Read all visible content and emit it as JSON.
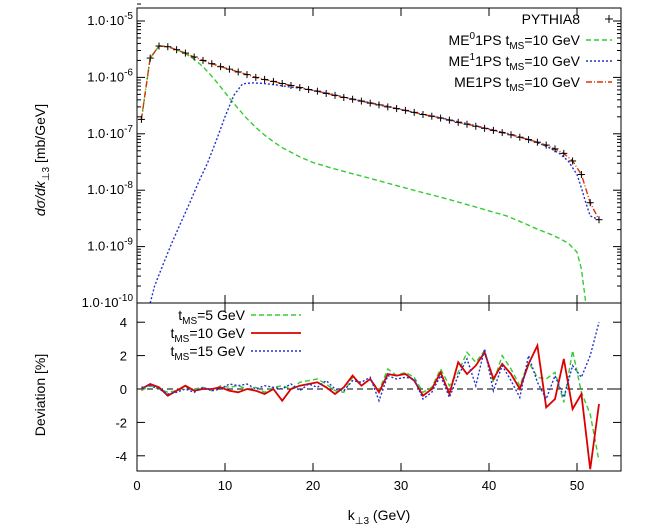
{
  "chart_data": [
    {
      "type": "line",
      "panel": "top",
      "title": "",
      "xlabel": "",
      "ylabel_main": "dσ/dk",
      "ylabel_sub": "⊥3",
      "ylabel_unit": "[mb/GeV]",
      "yscale": "log",
      "xlim": [
        0,
        55
      ],
      "ylim": [
        1e-10,
        2e-05
      ],
      "grid": false,
      "legend_position": "top-right",
      "y_ticks": [
        {
          "value": 1e-05,
          "mant": "1.0·10",
          "exp": "-5"
        },
        {
          "value": 1e-06,
          "mant": "1.0·10",
          "exp": "-6"
        },
        {
          "value": 1e-07,
          "mant": "1.0·10",
          "exp": "-7"
        },
        {
          "value": 1e-08,
          "mant": "1.0·10",
          "exp": "-8"
        },
        {
          "value": 1e-09,
          "mant": "1.0·10",
          "exp": "-9"
        },
        {
          "value": 1e-10,
          "mant": "1.0·10",
          "exp": "-10"
        }
      ],
      "legend": [
        {
          "parts": [
            {
              "t": "PYTHIA8"
            }
          ]
        },
        {
          "parts": [
            {
              "t": "ME"
            },
            {
              "t": "0",
              "sup": true
            },
            {
              "t": "1PS t"
            },
            {
              "t": "MS",
              "sub": true
            },
            {
              "t": "=10 GeV"
            }
          ]
        },
        {
          "parts": [
            {
              "t": "ME"
            },
            {
              "t": "1",
              "sup": true
            },
            {
              "t": "1PS t"
            },
            {
              "t": "MS",
              "sub": true
            },
            {
              "t": "=10 GeV"
            }
          ]
        },
        {
          "parts": [
            {
              "t": "ME1PS t"
            },
            {
              "t": "MS",
              "sub": true
            },
            {
              "t": "=10 GeV"
            }
          ]
        }
      ],
      "series": [
        {
          "key": "pythia",
          "style": "crosses",
          "color": "#000000",
          "x": [
            0.5,
            1.5,
            2.5,
            3.5,
            4.5,
            5.5,
            6.5,
            7.5,
            8.5,
            9.5,
            10.5,
            11.5,
            12.5,
            13.5,
            14.5,
            15.5,
            16.5,
            17.5,
            18.5,
            19.5,
            20.5,
            21.5,
            22.5,
            23.5,
            24.5,
            25.5,
            26.5,
            27.5,
            28.5,
            29.5,
            30.5,
            31.5,
            32.5,
            33.5,
            34.5,
            35.5,
            36.5,
            37.5,
            38.5,
            39.5,
            40.5,
            41.5,
            42.5,
            43.5,
            44.5,
            45.5,
            46.5,
            47.5,
            48.5,
            49.5,
            50.5,
            51.5,
            52.5
          ],
          "y": [
            1.8e-07,
            2.2e-06,
            3.6e-06,
            3.5e-06,
            3.1e-06,
            2.7e-06,
            2.3e-06,
            2e-06,
            1.75e-06,
            1.55e-06,
            1.4e-06,
            1.25e-06,
            1.12e-06,
            1e-06,
            9.2e-07,
            8.5e-07,
            7.8e-07,
            7.2e-07,
            6.6e-07,
            6.1e-07,
            5.7e-07,
            5.2e-07,
            4.8e-07,
            4.4e-07,
            4.1e-07,
            3.8e-07,
            3.5e-07,
            3.25e-07,
            3e-07,
            2.8e-07,
            2.6e-07,
            2.4e-07,
            2.2e-07,
            2.05e-07,
            1.9e-07,
            1.75e-07,
            1.6e-07,
            1.48e-07,
            1.36e-07,
            1.25e-07,
            1.15e-07,
            1.05e-07,
            9.6e-08,
            8.7e-08,
            7.9e-08,
            7.1e-08,
            6.3e-08,
            5.4e-08,
            4.5e-08,
            3.3e-08,
            1.9e-08,
            6e-09,
            3e-09
          ]
        },
        {
          "key": "me0",
          "style": "dashed",
          "color": "#33cc33",
          "x": [
            0.5,
            1.5,
            2.5,
            3.5,
            4.5,
            5.5,
            6.5,
            7.5,
            8.5,
            9.5,
            10.5,
            11.5,
            12.5,
            13.5,
            14.5,
            15.5,
            16.5,
            17.5,
            18.5,
            19.5,
            20,
            22,
            24,
            26,
            28,
            30,
            32,
            34,
            36,
            38,
            40,
            42,
            44,
            45,
            46,
            47,
            48,
            49,
            50,
            50.5,
            51
          ],
          "y": [
            1.8e-07,
            2.2e-06,
            3.6e-06,
            3.5e-06,
            3.1e-06,
            2.65e-06,
            2.1e-06,
            1.55e-06,
            1.05e-06,
            6.8e-07,
            4.3e-07,
            2.8e-07,
            1.85e-07,
            1.3e-07,
            9.5e-08,
            7.2e-08,
            5.7e-08,
            4.7e-08,
            3.9e-08,
            3.35e-08,
            3.1e-08,
            2.5e-08,
            2.05e-08,
            1.7e-08,
            1.4e-08,
            1.15e-08,
            9.5e-09,
            7.9e-09,
            6.5e-09,
            5.3e-09,
            4.3e-09,
            3.5e-09,
            2.6e-09,
            2.2e-09,
            1.9e-09,
            1.65e-09,
            1.4e-09,
            1.15e-09,
            8e-10,
            4e-10,
            1e-10
          ]
        },
        {
          "key": "me1",
          "style": "dotted",
          "color": "#2233cc",
          "x": [
            1.5,
            2,
            3,
            4,
            5,
            6,
            7,
            8,
            9,
            10,
            11,
            12,
            13,
            14,
            15,
            16,
            17,
            18,
            19,
            20,
            22,
            24,
            26,
            28,
            30,
            32,
            34,
            36,
            38,
            40,
            42,
            44,
            46,
            47,
            48,
            49,
            50,
            50.5,
            51,
            51.5,
            52.5
          ],
          "y": [
            1e-10,
            2e-10,
            5e-10,
            1.2e-09,
            2.7e-09,
            6e-09,
            1.4e-08,
            3e-08,
            7.5e-08,
            2e-07,
            4.8e-07,
            7.7e-07,
            8e-07,
            7.9e-07,
            7.6e-07,
            7.3e-07,
            6.9e-07,
            6.6e-07,
            6.3e-07,
            5.9e-07,
            5.1e-07,
            4.3e-07,
            3.7e-07,
            3.2e-07,
            2.7e-07,
            2.3e-07,
            2e-07,
            1.7e-07,
            1.45e-07,
            1.22e-07,
            1.02e-07,
            8.4e-08,
            6.5e-08,
            5.5e-08,
            4.5e-08,
            3.3e-08,
            1.9e-08,
            1.1e-08,
            6e-09,
            3.5e-09,
            3e-09
          ]
        },
        {
          "key": "me1ps",
          "style": "dashdot",
          "color": "#dd3300",
          "x": [
            0.5,
            1.5,
            2.5,
            3.5,
            4.5,
            5.5,
            6.5,
            7.5,
            8.5,
            9.5,
            10.5,
            11.5,
            12.5,
            13.5,
            14.5,
            15.5,
            16.5,
            17.5,
            18.5,
            19.5,
            20.5,
            21.5,
            22.5,
            23.5,
            24.5,
            25.5,
            26.5,
            27.5,
            28.5,
            29.5,
            30.5,
            31.5,
            32.5,
            33.5,
            34.5,
            35.5,
            36.5,
            37.5,
            38.5,
            39.5,
            40.5,
            41.5,
            42.5,
            43.5,
            44.5,
            45.5,
            46.5,
            47.5,
            48.5,
            49.5,
            50.5,
            51.5,
            52.5
          ],
          "y": [
            1.8e-07,
            2.2e-06,
            3.6e-06,
            3.5e-06,
            3.1e-06,
            2.7e-06,
            2.3e-06,
            2e-06,
            1.75e-06,
            1.55e-06,
            1.4e-06,
            1.25e-06,
            1.12e-06,
            1e-06,
            9.2e-07,
            8.5e-07,
            7.8e-07,
            7.2e-07,
            6.6e-07,
            6.1e-07,
            5.7e-07,
            5.2e-07,
            4.8e-07,
            4.4e-07,
            4.1e-07,
            3.8e-07,
            3.5e-07,
            3.25e-07,
            3e-07,
            2.8e-07,
            2.6e-07,
            2.4e-07,
            2.2e-07,
            2.05e-07,
            1.9e-07,
            1.75e-07,
            1.6e-07,
            1.48e-07,
            1.36e-07,
            1.25e-07,
            1.15e-07,
            1.05e-07,
            9.6e-08,
            8.7e-08,
            7.9e-08,
            7.1e-08,
            6.3e-08,
            5.4e-08,
            4.5e-08,
            3.3e-08,
            1.9e-08,
            6e-09,
            3e-09
          ]
        }
      ]
    },
    {
      "type": "line",
      "panel": "bottom",
      "title": "",
      "xlabel_main": "k",
      "xlabel_sub": "⊥3",
      "xlabel_unit": "(GeV)",
      "ylabel": "Deviation [%]",
      "xlim": [
        0,
        55
      ],
      "ylim": [
        -5,
        5
      ],
      "grid": false,
      "legend_position": "top-left",
      "x_ticks": [
        "0",
        "10",
        "20",
        "30",
        "40",
        "50"
      ],
      "x_tick_values": [
        0,
        10,
        20,
        30,
        40,
        50
      ],
      "y_ticks": [
        "4",
        "2",
        "0",
        "-2",
        "-4"
      ],
      "y_tick_values": [
        4,
        2,
        0,
        -2,
        -4
      ],
      "zero_line": true,
      "legend": [
        {
          "parts": [
            {
              "t": "t"
            },
            {
              "t": "MS",
              "sub": true
            },
            {
              "t": "=5 GeV"
            }
          ]
        },
        {
          "parts": [
            {
              "t": "t"
            },
            {
              "t": "MS",
              "sub": true
            },
            {
              "t": "=10 GeV"
            }
          ]
        },
        {
          "parts": [
            {
              "t": "t"
            },
            {
              "t": "MS",
              "sub": true
            },
            {
              "t": "=15 GeV"
            }
          ]
        }
      ],
      "series": [
        {
          "key": "t5",
          "style": "dashed",
          "color": "#33cc33",
          "x": [
            0.5,
            1.5,
            2.5,
            3.5,
            4.5,
            5.5,
            6.5,
            7.5,
            8.5,
            9.5,
            10.5,
            11.5,
            12.5,
            13.5,
            14.5,
            15.5,
            16.5,
            17.5,
            18.5,
            19.5,
            20.5,
            21.5,
            22.5,
            23.5,
            24.5,
            25.5,
            26.5,
            27.5,
            28.5,
            29.5,
            30.5,
            31.5,
            32.5,
            33.5,
            34.5,
            35.5,
            36.5,
            37.5,
            38.5,
            39.5,
            40.5,
            41.5,
            42.5,
            43.5,
            44.5,
            45.5,
            46.5,
            47.5,
            48.5,
            49.5,
            50.5,
            51.5,
            52.5
          ],
          "y": [
            -0.1,
            0.2,
            0.0,
            -0.2,
            -0.1,
            0.1,
            0.0,
            0.1,
            -0.1,
            0.2,
            0.1,
            0.2,
            0.0,
            0.1,
            -0.2,
            0.1,
            0.2,
            0.0,
            0.4,
            0.5,
            0.6,
            0.3,
            -0.1,
            -0.2,
            0.7,
            0.2,
            0.6,
            -0.1,
            1.2,
            0.8,
            1.0,
            0.7,
            -0.2,
            0.1,
            1.2,
            0.2,
            1.0,
            2.2,
            1.6,
            2.3,
            0.4,
            2.0,
            1.2,
            0.2,
            1.6,
            0.7,
            0.6,
            1.0,
            -0.8,
            2.3,
            -0.2,
            -1.5,
            -4.3
          ]
        },
        {
          "key": "t10",
          "style": "solid",
          "color": "#dd0000",
          "x": [
            0.5,
            1.5,
            2.5,
            3.5,
            4.5,
            5.5,
            6.5,
            7.5,
            8.5,
            9.5,
            10.5,
            11.5,
            12.5,
            13.5,
            14.5,
            15.5,
            16.5,
            17.5,
            18.5,
            19.5,
            20.5,
            21.5,
            22.5,
            23.5,
            24.5,
            25.5,
            26.5,
            27.5,
            28.5,
            29.5,
            30.5,
            31.5,
            32.5,
            33.5,
            34.5,
            35.5,
            36.5,
            37.5,
            38.5,
            39.5,
            40.5,
            41.5,
            42.5,
            43.5,
            44.5,
            45.5,
            46.5,
            47.5,
            48.5,
            49.5,
            50.5,
            51.5,
            52.5
          ],
          "y": [
            0.0,
            0.3,
            0.1,
            -0.4,
            -0.1,
            0.2,
            -0.1,
            0.0,
            0.0,
            0.1,
            -0.1,
            -0.2,
            0.0,
            -0.1,
            -0.3,
            0.0,
            -0.7,
            0.0,
            0.2,
            0.3,
            0.4,
            0.1,
            -0.3,
            0.1,
            0.8,
            0.2,
            0.6,
            -0.2,
            0.9,
            0.8,
            0.9,
            0.5,
            -0.4,
            0.0,
            1.0,
            -0.3,
            1.6,
            0.9,
            1.4,
            2.2,
            0.6,
            1.5,
            0.9,
            0.0,
            1.5,
            2.6,
            -1.1,
            -0.6,
            1.8,
            -1.2,
            -0.3,
            -4.8,
            -0.9
          ]
        },
        {
          "key": "t15",
          "style": "dotted",
          "color": "#2233cc",
          "x": [
            0.5,
            1.5,
            2.5,
            3.5,
            4.5,
            5.5,
            6.5,
            7.5,
            8.5,
            9.5,
            10.5,
            11.5,
            12.5,
            13.5,
            14.5,
            15.5,
            16.5,
            17.5,
            18.5,
            19.5,
            20.5,
            21.5,
            22.5,
            23.5,
            24.5,
            25.5,
            26.5,
            27.5,
            28.5,
            29.5,
            30.5,
            31.5,
            32.5,
            33.5,
            34.5,
            35.5,
            36.5,
            37.5,
            38.5,
            39.5,
            40.5,
            41.5,
            42.5,
            43.5,
            44.5,
            45.5,
            46.5,
            47.5,
            48.5,
            49.5,
            50.5,
            51.5,
            52.5
          ],
          "y": [
            0.1,
            0.2,
            0.0,
            -0.3,
            -0.2,
            0.0,
            -0.2,
            0.1,
            -0.1,
            0.0,
            0.3,
            0.2,
            0.3,
            0.0,
            0.2,
            0.1,
            0.0,
            0.3,
            -0.1,
            0.3,
            0.1,
            0.5,
            0.0,
            -0.1,
            0.5,
            0.4,
            0.7,
            -0.7,
            0.8,
            0.6,
            0.7,
            0.6,
            -0.6,
            -0.2,
            0.8,
            -0.5,
            0.8,
            1.8,
            0.2,
            2.4,
            -0.1,
            1.4,
            0.5,
            -0.5,
            2.0,
            0.4,
            -0.6,
            0.8,
            -0.5,
            1.4,
            0.7,
            2.0,
            4.0
          ]
        }
      ]
    }
  ]
}
